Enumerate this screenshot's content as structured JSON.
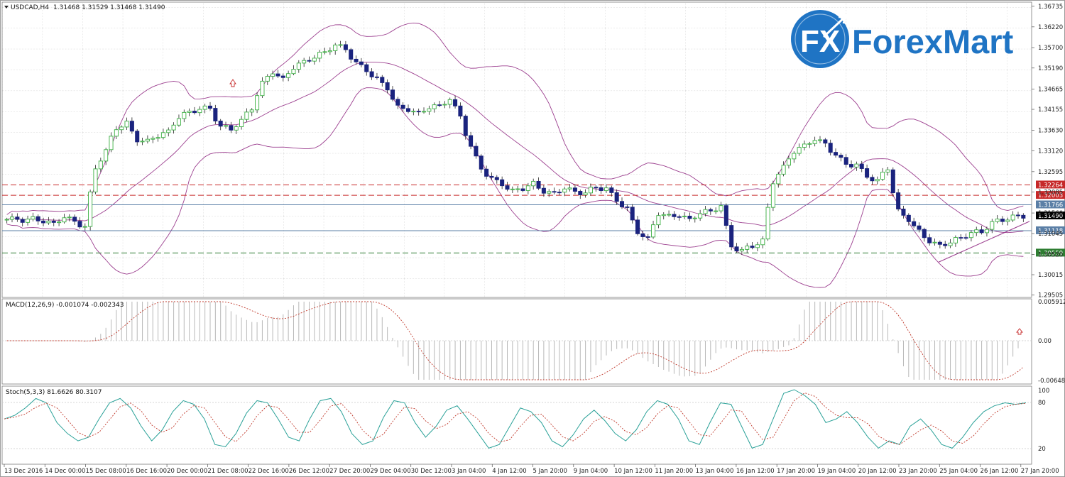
{
  "window": {
    "title_symbol": "USDCAD,H4",
    "title_ohlc": "1.31468 1.31529 1.31468 1.31490"
  },
  "logo": {
    "mark": "FX",
    "text": "ForexMart",
    "brand_color": "#1f74c4"
  },
  "colors": {
    "bull_candle": "#3cb043",
    "bear_candle": "#1a237e",
    "bollinger": "#9c3f8f",
    "grid": "#c8c8c8",
    "stoch_main": "#2aa198",
    "stoch_signal": "#c0392b",
    "macd_hist": "#b8b8b8",
    "macd_signal": "#c0392b"
  },
  "chart_data": [
    {
      "type": "candlestick",
      "pane": "main",
      "title": "USDCAD,H4",
      "ylim": [
        1.295,
        1.3675
      ],
      "y_ticks": [
        "1.36735",
        "1.36220",
        "1.35700",
        "1.35190",
        "1.34665",
        "1.34155",
        "1.33630",
        "1.33120",
        "1.32595",
        "1.32085",
        "1.31560",
        "1.31045",
        "1.30520",
        "1.30015",
        "1.29505"
      ],
      "x_ticks": [
        "13 Dec 2016",
        "14 Dec 00:00",
        "15 Dec 08:00",
        "16 Dec 16:00",
        "20 Dec 00:00",
        "21 Dec 08:00",
        "22 Dec 16:00",
        "26 Dec 12:00",
        "27 Dec 20:00",
        "29 Dec 04:00",
        "30 Dec 12:00",
        "3 Jan 04:00",
        "4 Jan 12:00",
        "5 Jan 20:00",
        "9 Jan 04:00",
        "10 Jan 12:00",
        "11 Jan 20:00",
        "13 Jan 04:00",
        "16 Jan 12:00",
        "17 Jan 20:00",
        "19 Jan 04:00",
        "20 Jan 12:00",
        "23 Jan 20:00",
        "25 Jan 04:00",
        "26 Jan 12:00",
        "27 Jan 20:00"
      ],
      "close_path": [
        1.314,
        1.3138,
        1.3142,
        1.3135,
        1.313,
        1.3145,
        1.3136,
        1.312,
        1.327,
        1.331,
        1.337,
        1.338,
        1.334,
        1.3335,
        1.335,
        1.336,
        1.3395,
        1.341,
        1.3415,
        1.342,
        1.337,
        1.3368,
        1.3385,
        1.342,
        1.348,
        1.351,
        1.349,
        1.352,
        1.3535,
        1.3545,
        1.356,
        1.3575,
        1.3568,
        1.353,
        1.3515,
        1.349,
        1.347,
        1.342,
        1.3415,
        1.3405,
        1.342,
        1.3425,
        1.344,
        1.34,
        1.332,
        1.327,
        1.324,
        1.323,
        1.321,
        1.3218,
        1.323,
        1.321,
        1.3205,
        1.3218,
        1.321,
        1.3205,
        1.3222,
        1.3215,
        1.319,
        1.3165,
        1.311,
        1.309,
        1.3155,
        1.3148,
        1.315,
        1.314,
        1.3155,
        1.3162,
        1.3172,
        1.3075,
        1.306,
        1.3075,
        1.3085,
        1.3235,
        1.327,
        1.331,
        1.3325,
        1.334,
        1.333,
        1.33,
        1.328,
        1.3275,
        1.325,
        1.3235,
        1.327,
        1.316,
        1.314,
        1.311,
        1.3085,
        1.3075,
        1.3082,
        1.3095,
        1.3105,
        1.311,
        1.313,
        1.314,
        1.3145,
        1.3149
      ],
      "bollinger_bands": [
        "upper",
        "middle",
        "lower"
      ],
      "horizontal_levels": [
        {
          "label": "1.32264",
          "color": "#c62828",
          "style": "dashed",
          "value": 1.32264
        },
        {
          "label": "1.32003",
          "color": "#c62828",
          "style": "dashed",
          "value": 1.32003
        },
        {
          "label": "1.31766",
          "color": "#5b7fa6",
          "style": "solid",
          "value": 1.31766
        },
        {
          "label": "1.31490",
          "color": "#000000",
          "style": "current",
          "value": 1.3149
        },
        {
          "label": "1.31118",
          "color": "#5b7fa6",
          "style": "solid",
          "value": 1.31118
        },
        {
          "label": "1.30559",
          "color": "#2e7d32",
          "style": "dashed",
          "value": 1.30559
        }
      ],
      "current_price_label": "1.31490"
    },
    {
      "type": "histogram",
      "pane": "macd",
      "title": "MACD(12,26,9) -0.001074 -0.002343",
      "y_ticks": [
        "0.005912",
        "0.00",
        "-0.006486"
      ],
      "ylim": [
        -0.0065,
        0.0059
      ]
    },
    {
      "type": "line",
      "pane": "stochastic",
      "title": "Stoch(5,3,3) 81.6626 80.3107",
      "y_ticks": [
        "100",
        "80",
        "20"
      ],
      "ylim": [
        0,
        100
      ],
      "series": [
        {
          "name": "main",
          "values": [
            60,
            65,
            75,
            88,
            82,
            55,
            40,
            30,
            35,
            60,
            82,
            88,
            75,
            50,
            30,
            45,
            70,
            85,
            80,
            60,
            25,
            22,
            40,
            68,
            85,
            82,
            60,
            35,
            30,
            60,
            85,
            88,
            70,
            40,
            25,
            30,
            62,
            85,
            82,
            55,
            35,
            50,
            72,
            78,
            60,
            40,
            20,
            25,
            50,
            75,
            70,
            55,
            30,
            22,
            38,
            60,
            72,
            58,
            40,
            30,
            45,
            70,
            85,
            80,
            60,
            30,
            25,
            55,
            82,
            80,
            50,
            20,
            25,
            60,
            95,
            100,
            92,
            80,
            55,
            60,
            70,
            55,
            35,
            20,
            30,
            25,
            50,
            60,
            45,
            25,
            20,
            35,
            55,
            70,
            78,
            82,
            80,
            82
          ]
        }
      ]
    }
  ]
}
